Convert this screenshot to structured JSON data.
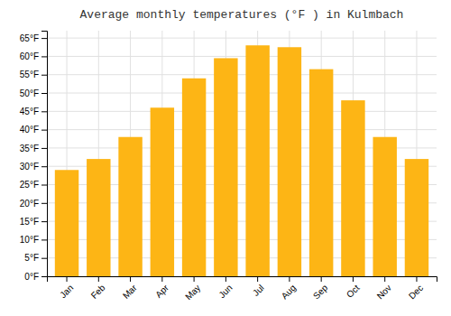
{
  "chart_data": {
    "type": "bar",
    "title": "Average monthly temperatures (°F ) in Kulmbach",
    "categories": [
      "Jan",
      "Feb",
      "Mar",
      "Apr",
      "May",
      "Jun",
      "Jul",
      "Aug",
      "Sep",
      "Oct",
      "Nov",
      "Dec"
    ],
    "values": [
      29,
      32,
      38,
      46,
      54,
      59.5,
      63,
      62.5,
      56.5,
      48,
      38,
      32
    ],
    "color": "#FDB515",
    "ylim": [
      0,
      67
    ],
    "yticks": [
      {
        "value": 0,
        "label": "0°F"
      },
      {
        "value": 5,
        "label": "5°F"
      },
      {
        "value": 10,
        "label": "10°F"
      },
      {
        "value": 15,
        "label": "15°F"
      },
      {
        "value": 20,
        "label": "20°F"
      },
      {
        "value": 25,
        "label": "25°F"
      },
      {
        "value": 30,
        "label": "30°F"
      },
      {
        "value": 35,
        "label": "35°F"
      },
      {
        "value": 40,
        "label": "40°F"
      },
      {
        "value": 45,
        "label": "45°F"
      },
      {
        "value": 50,
        "label": "50°F"
      },
      {
        "value": 55,
        "label": "55°F"
      },
      {
        "value": 60,
        "label": "60°F"
      },
      {
        "value": 65,
        "label": "65°F"
      }
    ],
    "grid": true
  }
}
